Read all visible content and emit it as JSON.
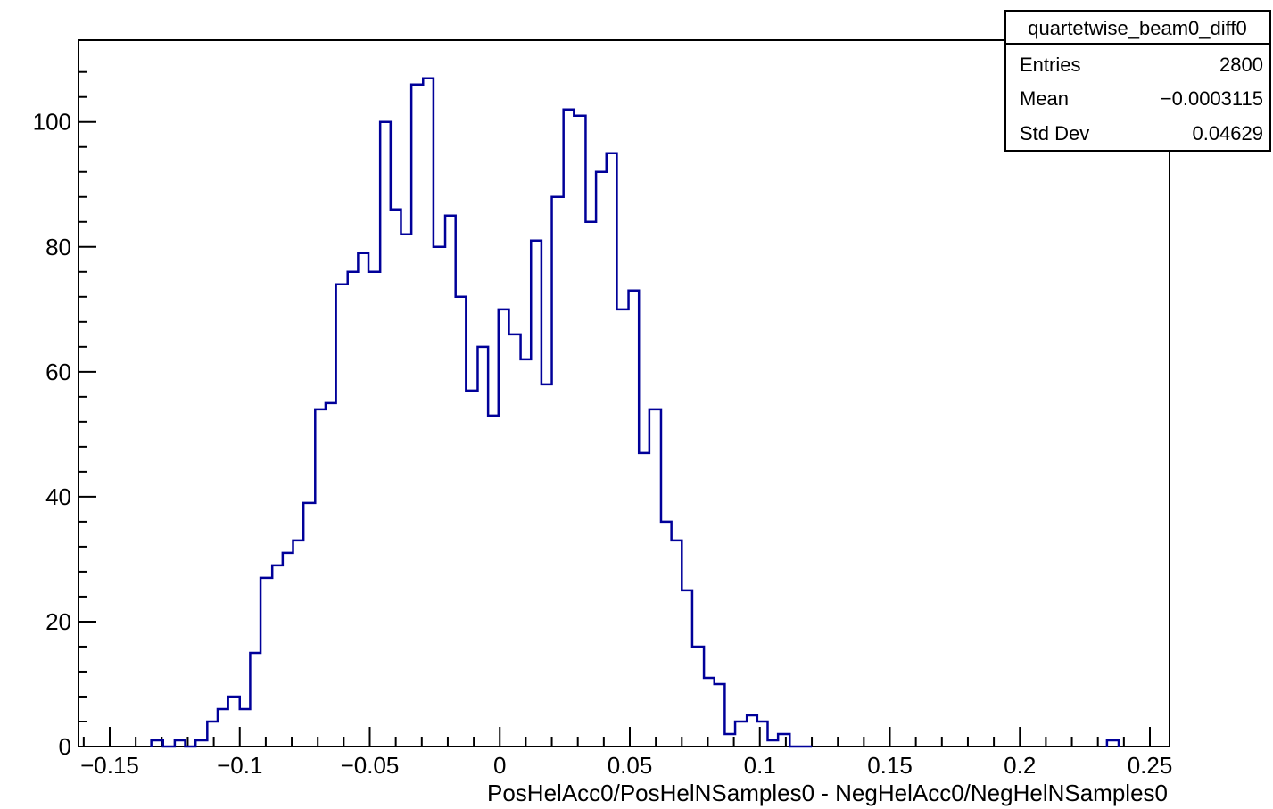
{
  "chart_data": {
    "type": "histogram",
    "xlabel": "PosHelAcc0/PosHelNSamples0 - NegHelAcc0/NegHelNSamples0",
    "ylabel": "",
    "xlim": [
      -0.16,
      0.26
    ],
    "ylim": [
      0,
      111
    ],
    "x_major_ticks": [
      -0.15,
      -0.1,
      -0.05,
      0,
      0.05,
      0.1,
      0.15,
      0.2,
      0.25
    ],
    "x_tick_labels": [
      "−0.15",
      "−0.1",
      "−0.05",
      "0",
      "0.05",
      "0.1",
      "0.15",
      "0.2",
      "0.25"
    ],
    "y_major_ticks": [
      0,
      20,
      40,
      60,
      80,
      100
    ],
    "y_tick_labels": [
      "0",
      "20",
      "40",
      "60",
      "80",
      "100"
    ],
    "grid": false,
    "line_color": "#000099",
    "bins": {
      "edges": [
        -0.134,
        -0.1295,
        -0.125,
        -0.121,
        -0.117,
        -0.1125,
        -0.1085,
        -0.1045,
        -0.1,
        -0.096,
        -0.092,
        -0.0875,
        -0.0835,
        -0.0795,
        -0.0755,
        -0.071,
        -0.067,
        -0.063,
        -0.0585,
        -0.0545,
        -0.0505,
        -0.046,
        -0.042,
        -0.038,
        -0.034,
        -0.0295,
        -0.0255,
        -0.021,
        -0.017,
        -0.013,
        -0.0085,
        -0.0045,
        -0.0005,
        0.0035,
        0.008,
        0.012,
        0.016,
        0.02,
        0.0245,
        0.0285,
        0.033,
        0.037,
        0.041,
        0.045,
        0.0495,
        0.0535,
        0.0575,
        0.062,
        0.066,
        0.07,
        0.074,
        0.0785,
        0.0825,
        0.0865,
        0.0905,
        0.095,
        0.099,
        0.103,
        0.107,
        0.1115,
        0.1155,
        0.12
      ],
      "counts": [
        1,
        0,
        1,
        0,
        1,
        4,
        6,
        8,
        6,
        15,
        27,
        29,
        31,
        33,
        39,
        54,
        55,
        74,
        76,
        79,
        76,
        100,
        86,
        82,
        106,
        107,
        80,
        85,
        72,
        57,
        64,
        53,
        70,
        66,
        62,
        81,
        58,
        88,
        102,
        101,
        84,
        92,
        95,
        70,
        73,
        47,
        54,
        36,
        33,
        25,
        16,
        11,
        10,
        2,
        4,
        5,
        4,
        1,
        2,
        0,
        0
      ]
    },
    "outlier_bin": {
      "edges": [
        0.2335,
        0.238
      ],
      "count": 1
    },
    "stats_box": {
      "title": "quartetwise_beam0_diff0",
      "rows": [
        {
          "label": "Entries",
          "value": "2800"
        },
        {
          "label": "Mean",
          "value": "−0.0003115"
        },
        {
          "label": "Std Dev",
          "value": "0.04629"
        }
      ]
    }
  }
}
